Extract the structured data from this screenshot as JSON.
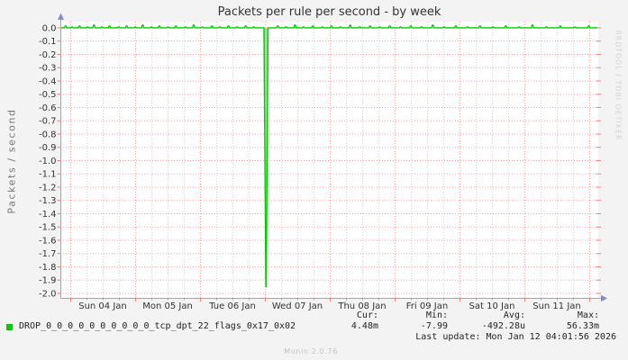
{
  "title": "Packets per rule per second - by week",
  "ylabel": "Packets / second",
  "watermark": "RRDTOOL / TOBI OETIKER",
  "footer": "Munin 2.0.76",
  "legend": {
    "series_label": "DROP_0_0_0_0_0_0_0_0_0_0_tcp_dpt_22_flags_0x17_0x02",
    "series_color": "#00cc00",
    "stats_headers": [
      "Cur:",
      "Min:",
      "Avg:",
      "Max:"
    ],
    "stats_values": [
      "4.48m",
      "-7.99",
      "-492.28u",
      "56.33m"
    ],
    "last_update": "Last update: Mon Jan 12 04:01:56 2026"
  },
  "chart_data": {
    "type": "line",
    "title": "Packets per rule per second - by week",
    "xlabel": "",
    "ylabel": "Packets / second",
    "ylim": [
      -2.034,
      0.047
    ],
    "y_tick_step": 0.1,
    "x_tick_labels": [
      "Sun 04 Jan",
      "Mon 05 Jan",
      "Tue 06 Jan",
      "Wed 07 Jan",
      "Thu 08 Jan",
      "Fri 09 Jan",
      "Sat 10 Jan",
      "Sun 11 Jan"
    ],
    "grid": true,
    "legend_position": "bottom",
    "series": [
      {
        "name": "DROP_0_0_0_0_0_0_0_0_0_0_tcp_dpt_22_flags_0x17_0x02",
        "color": "#00cc00",
        "fill_color": "#86e286",
        "baseline_value": 0,
        "spike": {
          "x_frac": 0.38,
          "time_label": "Wed 07 Jan 00:00",
          "min_value": -1.95
        },
        "noise_bumps": [
          [
            0.008,
            2
          ],
          [
            0.02,
            1
          ],
          [
            0.034,
            2
          ],
          [
            0.049,
            1
          ],
          [
            0.061,
            3
          ],
          [
            0.076,
            1
          ],
          [
            0.09,
            2
          ],
          [
            0.107,
            1
          ],
          [
            0.122,
            2
          ],
          [
            0.138,
            1
          ],
          [
            0.152,
            3
          ],
          [
            0.168,
            1
          ],
          [
            0.183,
            2
          ],
          [
            0.199,
            1
          ],
          [
            0.214,
            2
          ],
          [
            0.232,
            1
          ],
          [
            0.247,
            3
          ],
          [
            0.263,
            1
          ],
          [
            0.281,
            2
          ],
          [
            0.296,
            1
          ],
          [
            0.312,
            2
          ],
          [
            0.328,
            1
          ],
          [
            0.344,
            2
          ],
          [
            0.359,
            1
          ],
          [
            0.404,
            2
          ],
          [
            0.419,
            1
          ],
          [
            0.436,
            3
          ],
          [
            0.452,
            1
          ],
          [
            0.469,
            2
          ],
          [
            0.487,
            1
          ],
          [
            0.504,
            2
          ],
          [
            0.521,
            1
          ],
          [
            0.539,
            3
          ],
          [
            0.557,
            1
          ],
          [
            0.576,
            2
          ],
          [
            0.594,
            1
          ],
          [
            0.613,
            2
          ],
          [
            0.633,
            1
          ],
          [
            0.652,
            2
          ],
          [
            0.672,
            1
          ],
          [
            0.693,
            3
          ],
          [
            0.714,
            1
          ],
          [
            0.736,
            2
          ],
          [
            0.758,
            1
          ],
          [
            0.781,
            2
          ],
          [
            0.805,
            1
          ],
          [
            0.829,
            2
          ],
          [
            0.854,
            1
          ],
          [
            0.879,
            3
          ],
          [
            0.905,
            1
          ],
          [
            0.931,
            2
          ],
          [
            0.958,
            1
          ],
          [
            0.984,
            2
          ]
        ],
        "stats": {
          "cur": "4.48m",
          "min": "-7.99",
          "avg": "-492.28u",
          "max": "56.33m"
        }
      }
    ],
    "last_update": "Mon Jan 12 04:01:56 2026",
    "colors": {
      "background": "#f3f3f3",
      "plot_background": "#ffffff",
      "major_grid": "#ff9f9f",
      "minor_grid": "#d4d4d4",
      "axis": "#9f9fd0",
      "arrow": "#8989ce",
      "tick": "#f08080"
    }
  }
}
